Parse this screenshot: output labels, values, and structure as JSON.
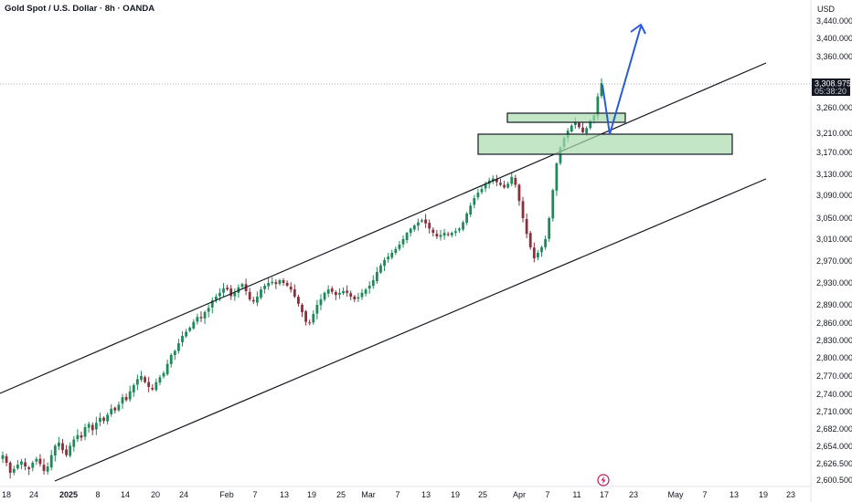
{
  "header": {
    "symbol_title": "Gold Spot / U.S. Dollar · 8h · OANDA",
    "currency": "USD"
  },
  "price_tag": {
    "price": "3,308.975",
    "countdown": "05:38:20",
    "color": "#131722"
  },
  "colors": {
    "up": "#1e8a5a",
    "down": "#8b2f3a",
    "zone_fill": "#a8dcae",
    "arrow": "#2a5bd7",
    "channel": "#131722"
  },
  "chart_data": {
    "type": "candlestick",
    "title": "Gold Spot / U.S. Dollar · 8h · OANDA",
    "ylabel": "USD",
    "y_ticks": [
      "3,440.000",
      "3,400.000",
      "3,360.000",
      "3,260.000",
      "3,210.000",
      "3,170.000",
      "3,130.000",
      "3,090.000",
      "3,050.000",
      "3,010.000",
      "2,970.000",
      "2,930.000",
      "2,890.000",
      "2,860.000",
      "2,830.000",
      "2,800.000",
      "2,770.000",
      "2,740.000",
      "2,710.000",
      "2,682.000",
      "2,654.000",
      "2,626.500",
      "2,600.500"
    ],
    "x_ticks": [
      {
        "label": "18",
        "bold": false
      },
      {
        "label": "24",
        "bold": false
      },
      {
        "label": "2025",
        "bold": true
      },
      {
        "label": "8",
        "bold": false
      },
      {
        "label": "14",
        "bold": false
      },
      {
        "label": "20",
        "bold": false
      },
      {
        "label": "24",
        "bold": false
      },
      {
        "label": "Feb",
        "bold": false
      },
      {
        "label": "7",
        "bold": false
      },
      {
        "label": "13",
        "bold": false
      },
      {
        "label": "19",
        "bold": false
      },
      {
        "label": "25",
        "bold": false
      },
      {
        "label": "Mar",
        "bold": false
      },
      {
        "label": "7",
        "bold": false
      },
      {
        "label": "13",
        "bold": false
      },
      {
        "label": "19",
        "bold": false
      },
      {
        "label": "25",
        "bold": false
      },
      {
        "label": "Apr",
        "bold": false
      },
      {
        "label": "7",
        "bold": false
      },
      {
        "label": "11",
        "bold": false
      },
      {
        "label": "17",
        "bold": false
      },
      {
        "label": "23",
        "bold": false
      },
      {
        "label": "May",
        "bold": false
      },
      {
        "label": "7",
        "bold": false
      },
      {
        "label": "13",
        "bold": false
      },
      {
        "label": "19",
        "bold": false
      },
      {
        "label": "23",
        "bold": false
      }
    ],
    "last_price": 3308.975,
    "close_path": [
      2640,
      2628,
      2612,
      2618,
      2625,
      2630,
      2622,
      2618,
      2628,
      2634,
      2626,
      2615,
      2622,
      2640,
      2655,
      2660,
      2648,
      2640,
      2655,
      2665,
      2672,
      2668,
      2685,
      2690,
      2680,
      2692,
      2700,
      2695,
      2705,
      2715,
      2712,
      2722,
      2735,
      2730,
      2745,
      2755,
      2765,
      2770,
      2760,
      2752,
      2748,
      2760,
      2768,
      2775,
      2790,
      2805,
      2812,
      2825,
      2838,
      2845,
      2852,
      2862,
      2870,
      2868,
      2878,
      2885,
      2898,
      2905,
      2912,
      2920,
      2918,
      2906,
      2912,
      2922,
      2928,
      2915,
      2900,
      2896,
      2905,
      2918,
      2925,
      2930,
      2932,
      2928,
      2935,
      2930,
      2925,
      2918,
      2905,
      2892,
      2878,
      2862,
      2860,
      2875,
      2890,
      2900,
      2912,
      2918,
      2914,
      2908,
      2912,
      2915,
      2912,
      2905,
      2900,
      2904,
      2912,
      2918,
      2925,
      2935,
      2950,
      2962,
      2972,
      2978,
      2985,
      2992,
      3000,
      3010,
      3022,
      3030,
      3036,
      3042,
      3046,
      3040,
      3030,
      3022,
      3015,
      3018,
      3022,
      3018,
      3022,
      3025,
      3030,
      3042,
      3058,
      3072,
      3085,
      3095,
      3102,
      3112,
      3118,
      3122,
      3115,
      3110,
      3105,
      3112,
      3125,
      3110,
      3080,
      3050,
      3020,
      2995,
      2975,
      2985,
      2995,
      3010,
      3050,
      3100,
      3150,
      3180,
      3200,
      3215,
      3225,
      3232,
      3222,
      3212,
      3220,
      3235,
      3245,
      3282,
      3308
    ],
    "channel_upper": {
      "x1": 0,
      "y1": 431,
      "x2": 838,
      "y2": 69
    },
    "channel_lower": {
      "x1": 60,
      "y1": 527,
      "x2": 838,
      "y2": 196
    },
    "zones": [
      {
        "name": "upper-zone",
        "y_top": 3252,
        "y_bottom": 3236
      },
      {
        "name": "lower-zone",
        "y_top": 3210,
        "y_bottom": 3168
      }
    ]
  }
}
